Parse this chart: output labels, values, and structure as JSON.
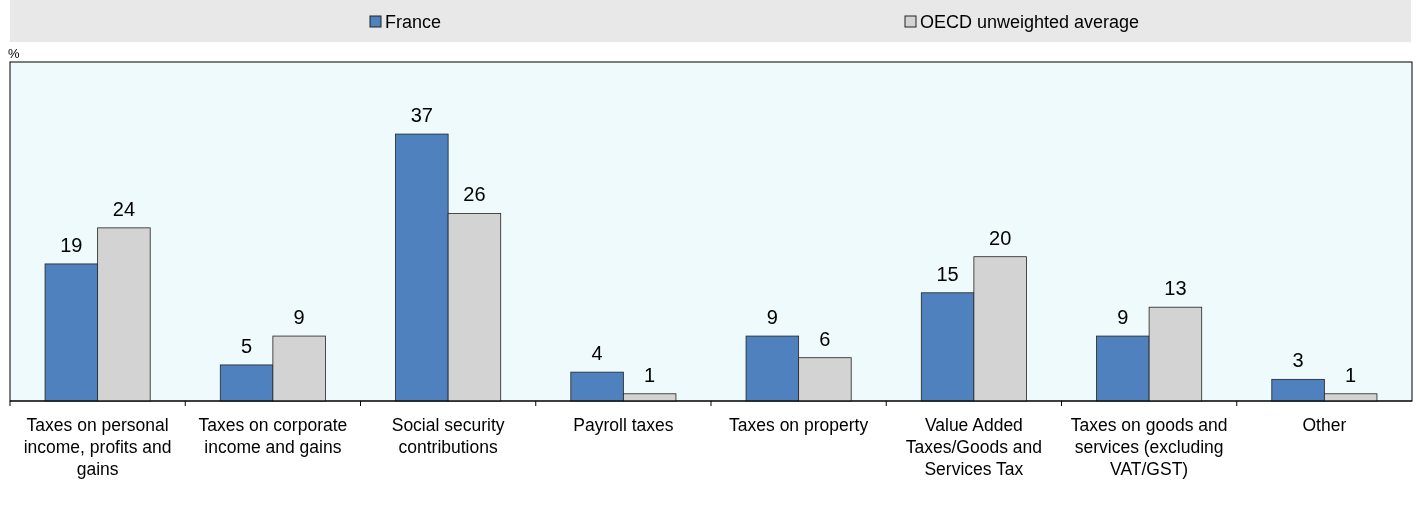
{
  "chart_data": {
    "type": "bar",
    "annotations": [
      "%"
    ],
    "categories": [
      "Taxes on personal income, profits and gains",
      "Taxes on corporate income and gains",
      "Social security contributions",
      "Payroll taxes",
      "Taxes on property",
      "Value Added Taxes/Goods and Services Tax",
      "Taxes on goods and services (excluding VAT/GST)",
      "Other"
    ],
    "series": [
      {
        "name": "France",
        "color": "#4e81bd",
        "values": [
          19,
          5,
          37,
          4,
          9,
          15,
          9,
          3
        ]
      },
      {
        "name": "OECD unweighted average",
        "color": "#d3d3d3",
        "values": [
          24,
          9,
          26,
          1,
          6,
          20,
          13,
          1
        ]
      }
    ],
    "data_labels": true,
    "legend": "top"
  }
}
